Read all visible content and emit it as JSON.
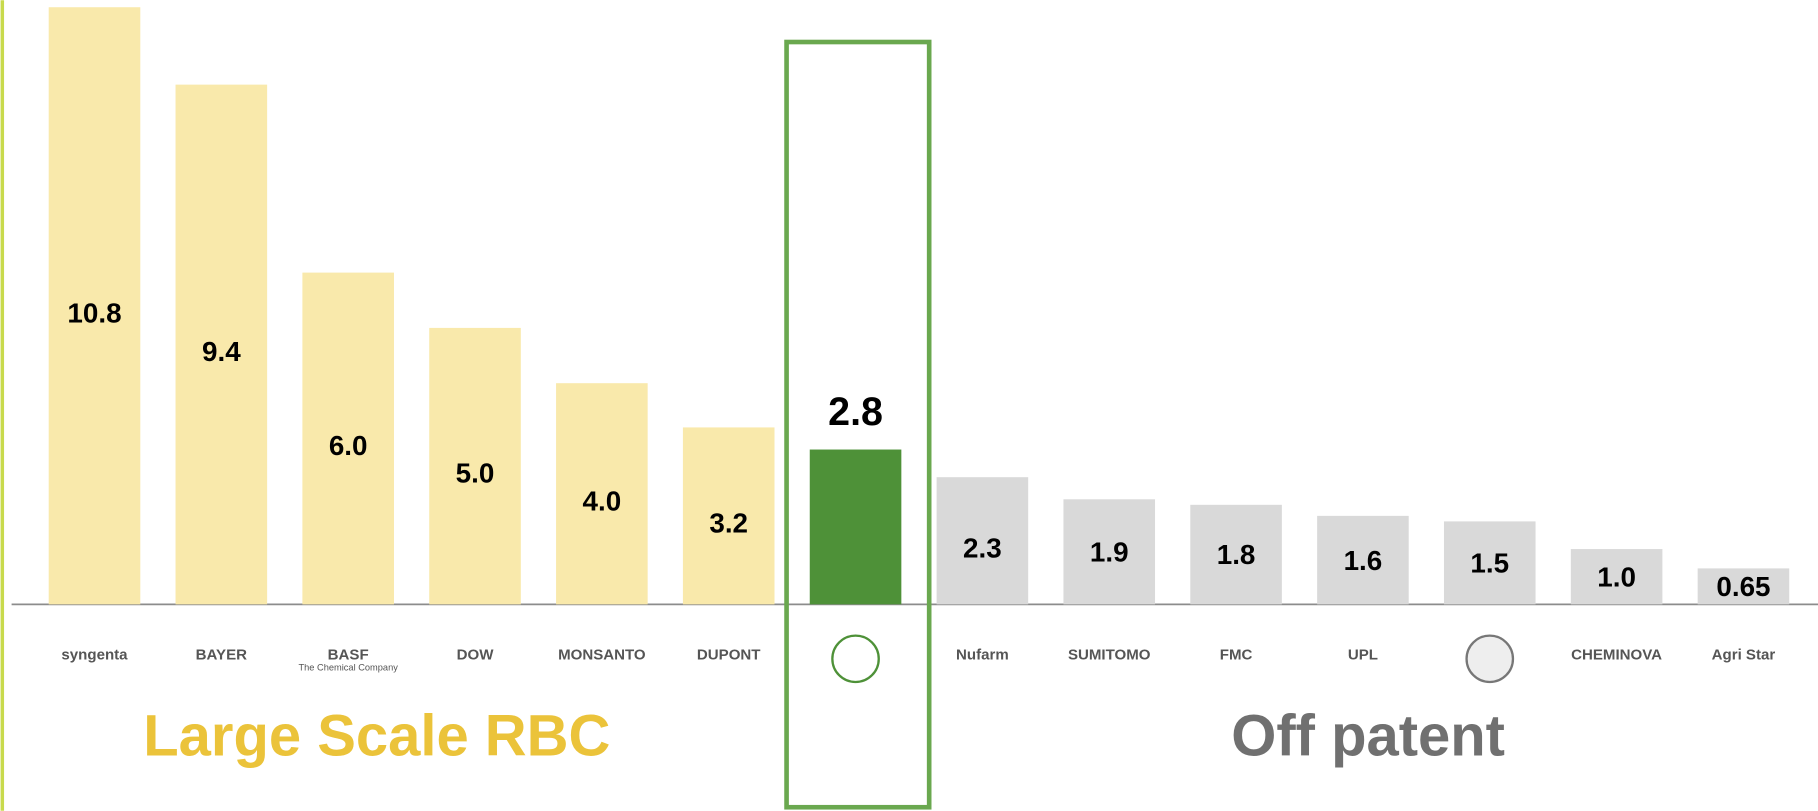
{
  "chart_data": {
    "type": "bar",
    "categories": [
      "syngenta",
      "BAYER",
      "BASF",
      "DOW",
      "MONSANTO",
      "DUPONT",
      null,
      "Nufarm",
      "SUMITOMO",
      "FMC",
      "UPL",
      null,
      "CHEMINOVA",
      "Agri Star"
    ],
    "category_note": "The Chemical Company",
    "values": [
      10.8,
      9.4,
      6.0,
      5.0,
      4.0,
      3.2,
      2.8,
      2.3,
      1.9,
      1.8,
      1.6,
      1.5,
      1.0,
      0.65
    ],
    "value_labels": [
      "10.8",
      "9.4",
      "6.0",
      "5.0",
      "4.0",
      "3.2",
      "2.8",
      "2.3",
      "1.9",
      "1.8",
      "1.6",
      "1.5",
      "1.0",
      "0.65"
    ],
    "colors": [
      "#f9e9ab",
      "#f9e9ab",
      "#f9e9ab",
      "#f9e9ab",
      "#f9e9ab",
      "#f9e9ab",
      "#4e9138",
      "#d9d9d9",
      "#d9d9d9",
      "#d9d9d9",
      "#d9d9d9",
      "#d9d9d9",
      "#d9d9d9",
      "#d9d9d9"
    ],
    "highlight_color": "#4e9138",
    "ylim": [
      0,
      10.8
    ],
    "groups": [
      {
        "label": "Large Scale RBC",
        "color": "#ebc33a"
      },
      {
        "label": "Off patent",
        "color": "#707070"
      }
    ]
  }
}
